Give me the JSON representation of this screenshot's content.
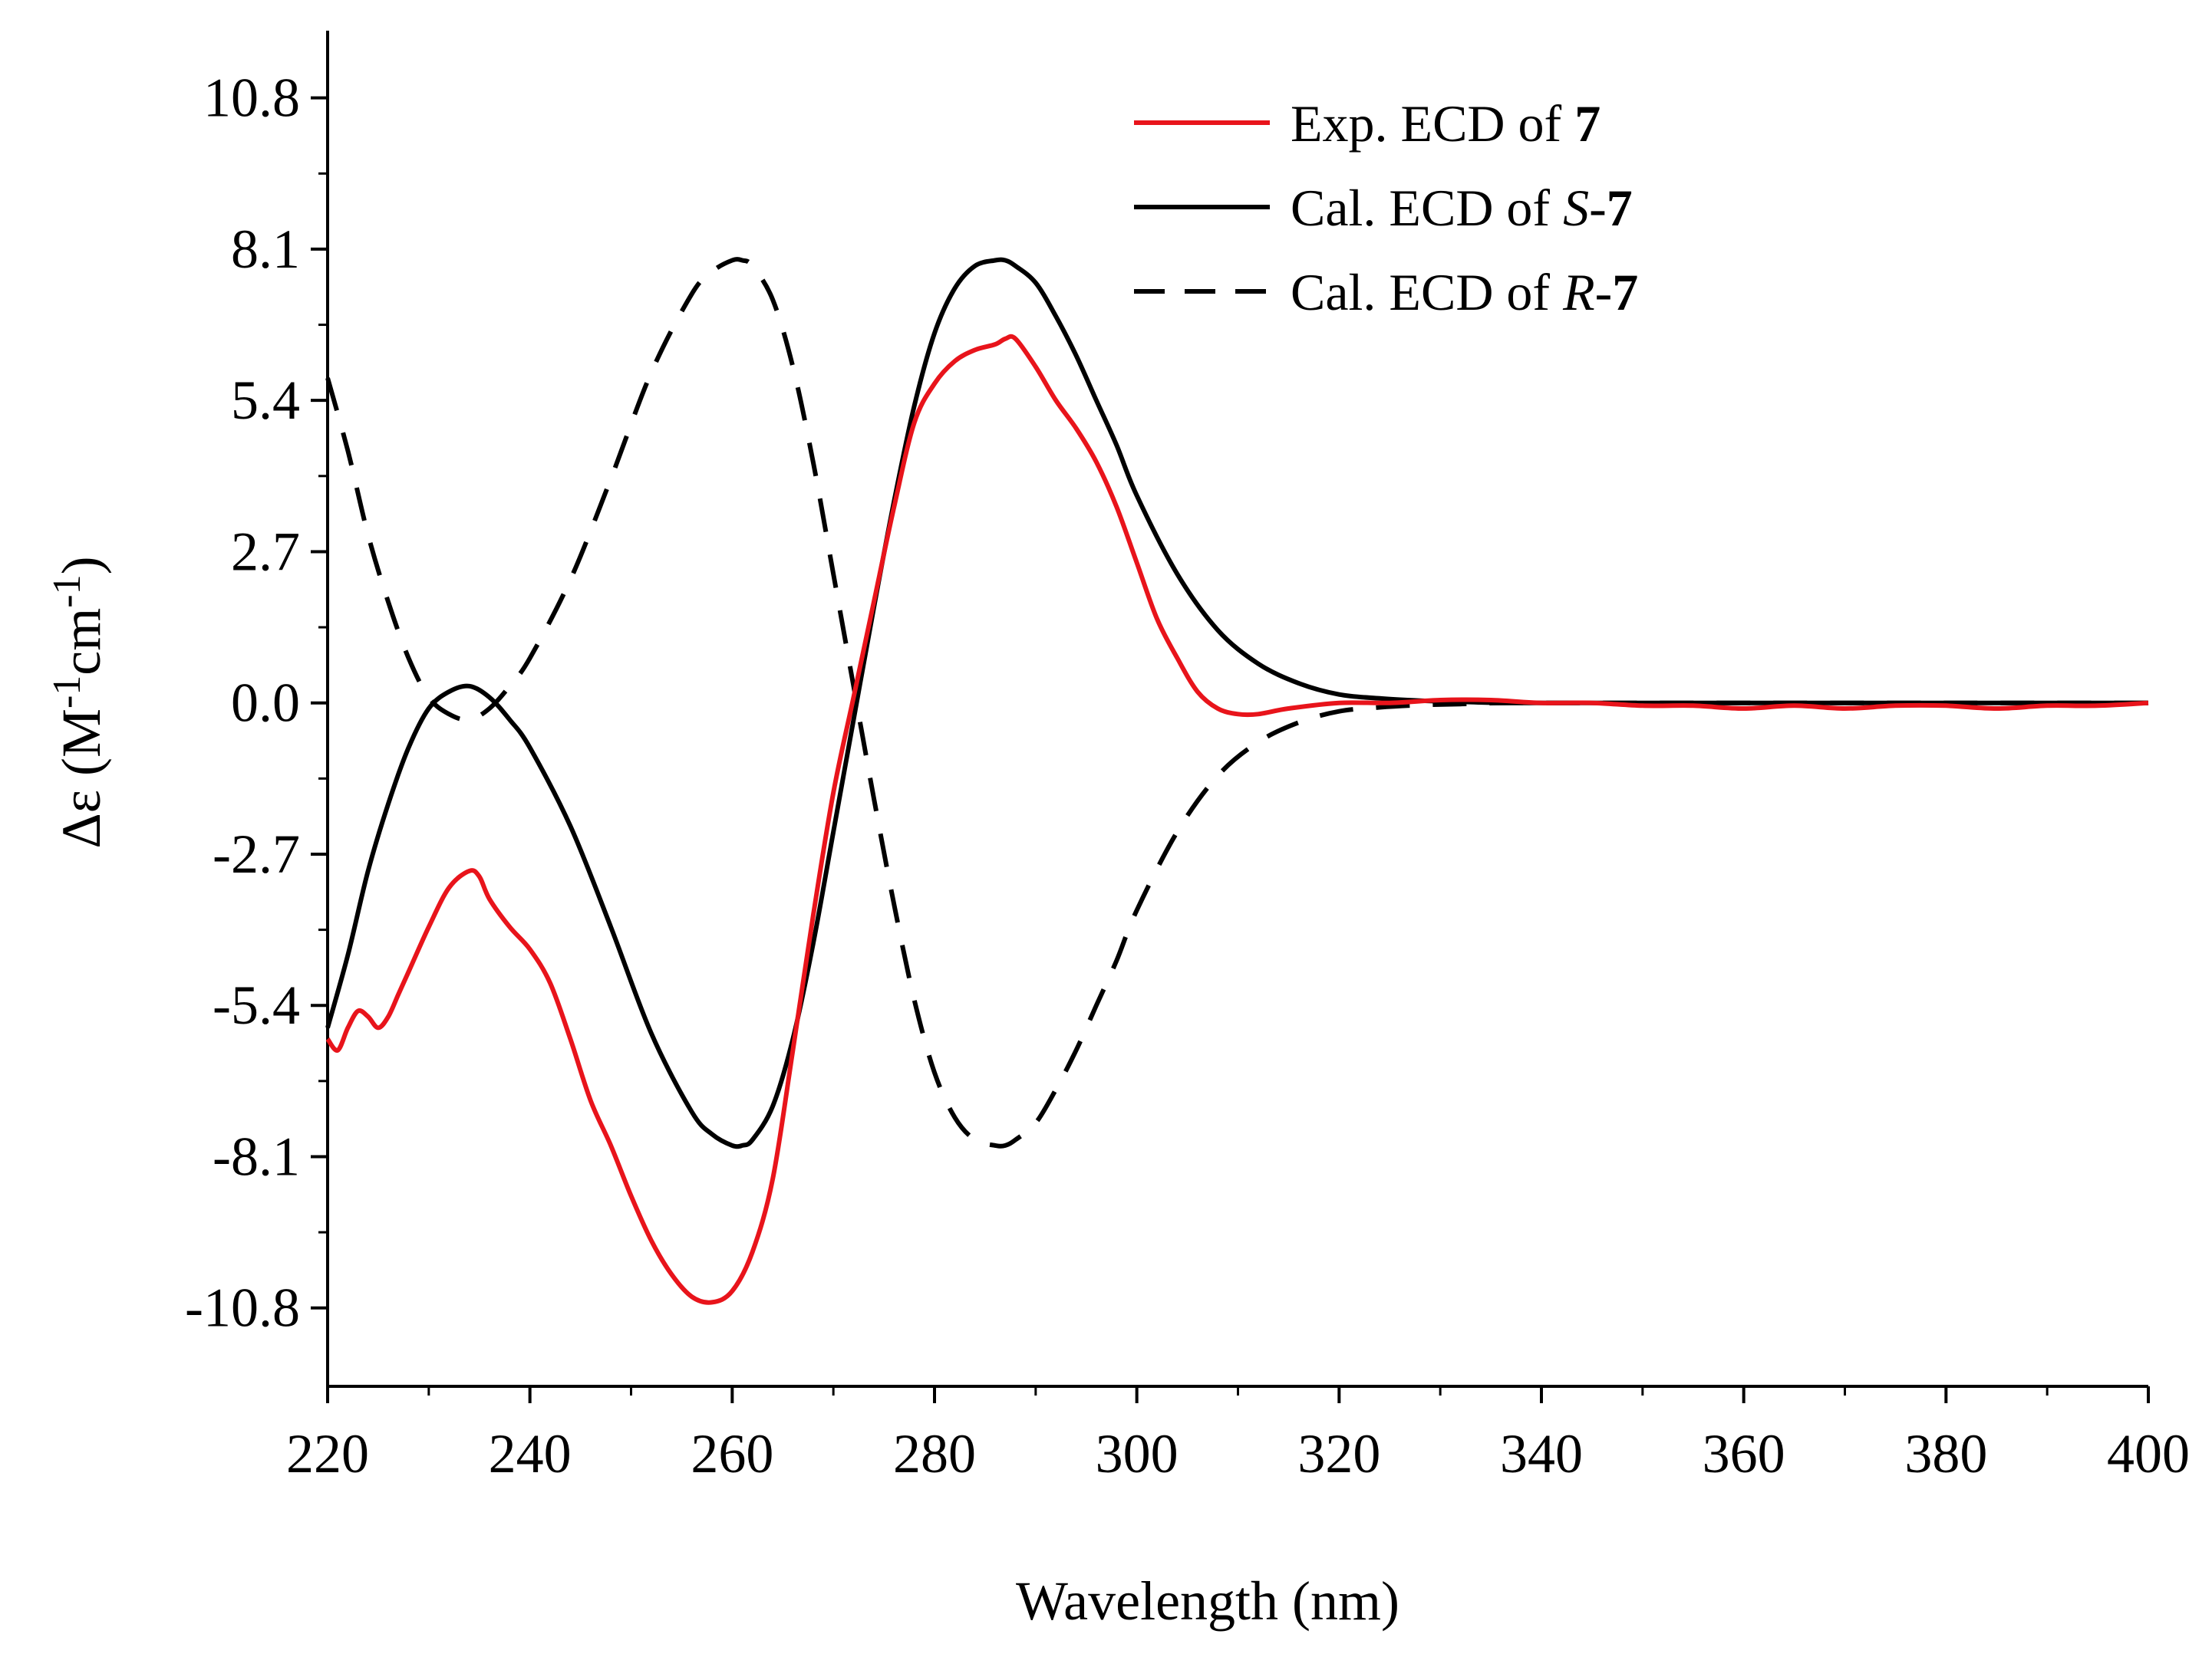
{
  "chart_data": {
    "type": "line",
    "title": "",
    "xlabel": "Wavelength (nm)",
    "ylabel": {
      "prefix": "Δε (M",
      "sup1": "-1",
      "middle": "cm",
      "sup2": "-1",
      "suffix": ")"
    },
    "xlim": [
      220,
      400
    ],
    "ylim": [
      -12.2,
      12.0
    ],
    "xticks": [
      220,
      240,
      260,
      280,
      300,
      320,
      340,
      360,
      380,
      400
    ],
    "xtick_labels": [
      "220",
      "240",
      "260",
      "280",
      "300",
      "320",
      "340",
      "360",
      "380",
      "400"
    ],
    "yticks": [
      10.8,
      8.1,
      5.4,
      2.7,
      0.0,
      -2.7,
      -5.4,
      -8.1,
      -10.8
    ],
    "ytick_labels": [
      "10.8",
      "8.1",
      "5.4",
      "2.7",
      "0.0",
      "-2.7",
      "-5.4",
      "-8.1",
      "-10.8"
    ],
    "grid": false,
    "legend_position": "top-right",
    "series": [
      {
        "name": "Exp. ECD of 7",
        "legend": {
          "pre": "Exp. ECD of ",
          "italic": "",
          "mid": "",
          "bold": "7"
        },
        "color": "#e8141b",
        "dash": "solid",
        "x": [
          220,
          221,
          222,
          223,
          224,
          225,
          226,
          227,
          228,
          230,
          232,
          234,
          235,
          236,
          238,
          240,
          242,
          244,
          246,
          248,
          250,
          252,
          254,
          256,
          258,
          260,
          262,
          264,
          266,
          268,
          270,
          272,
          274,
          276,
          278,
          280,
          282,
          284,
          286,
          287,
          288,
          290,
          292,
          294,
          296,
          298,
          300,
          302,
          304,
          306,
          308,
          310,
          312,
          315,
          320,
          325,
          330,
          335,
          340,
          345,
          350,
          355,
          360,
          365,
          370,
          375,
          380,
          385,
          390,
          395,
          400
        ],
        "y": [
          -6.0,
          -6.2,
          -5.8,
          -5.5,
          -5.6,
          -5.8,
          -5.6,
          -5.2,
          -4.8,
          -4.0,
          -3.3,
          -3.0,
          -3.1,
          -3.5,
          -4.0,
          -4.4,
          -5.0,
          -6.0,
          -7.1,
          -7.9,
          -8.8,
          -9.6,
          -10.2,
          -10.6,
          -10.7,
          -10.5,
          -9.8,
          -8.5,
          -6.2,
          -3.8,
          -1.6,
          0.1,
          1.8,
          3.5,
          5.0,
          5.7,
          6.1,
          6.3,
          6.4,
          6.5,
          6.5,
          6.0,
          5.4,
          4.9,
          4.3,
          3.5,
          2.5,
          1.5,
          0.8,
          0.2,
          -0.1,
          -0.2,
          -0.2,
          -0.1,
          0.0,
          0.0,
          0.05,
          0.05,
          0.0,
          0.0,
          -0.05,
          -0.05,
          -0.1,
          -0.05,
          -0.1,
          -0.05,
          -0.05,
          -0.1,
          -0.05,
          -0.05,
          0.0
        ]
      },
      {
        "name": "Cal. ECD of S-7",
        "legend": {
          "pre": "Cal. ECD of ",
          "italic": "S",
          "mid": "-",
          "bold": "7"
        },
        "color": "#000000",
        "dash": "solid",
        "x": [
          220,
          222,
          224,
          226,
          228,
          230,
          232,
          234,
          236,
          238,
          240,
          244,
          248,
          252,
          256,
          258,
          260,
          261,
          262,
          264,
          266,
          268,
          270,
          272,
          274,
          276,
          278,
          280,
          282,
          284,
          286,
          287,
          288,
          290,
          292,
          294,
          296,
          298,
          300,
          304,
          308,
          312,
          316,
          320,
          324,
          328,
          332,
          336,
          340,
          350,
          360,
          380,
          400
        ],
        "y": [
          -5.8,
          -4.5,
          -3.0,
          -1.8,
          -0.8,
          -0.1,
          0.2,
          0.3,
          0.1,
          -0.3,
          -0.8,
          -2.2,
          -4.0,
          -5.9,
          -7.3,
          -7.7,
          -7.9,
          -7.9,
          -7.8,
          -7.2,
          -6.0,
          -4.3,
          -2.3,
          -0.3,
          1.7,
          3.6,
          5.3,
          6.6,
          7.4,
          7.8,
          7.9,
          7.9,
          7.8,
          7.5,
          6.9,
          6.2,
          5.4,
          4.6,
          3.7,
          2.3,
          1.3,
          0.7,
          0.35,
          0.15,
          0.08,
          0.04,
          0.02,
          0.0,
          0.0,
          0.0,
          0.0,
          0.0,
          0.0
        ]
      },
      {
        "name": "Cal. ECD of R-7",
        "legend": {
          "pre": "Cal. ECD of ",
          "italic": "R",
          "mid": "-",
          "bold": "7"
        },
        "color": "#000000",
        "dash": "dashed",
        "x": [
          220,
          222,
          224,
          226,
          228,
          230,
          232,
          234,
          236,
          238,
          240,
          244,
          248,
          252,
          256,
          258,
          260,
          261,
          262,
          264,
          266,
          268,
          270,
          272,
          274,
          276,
          278,
          280,
          282,
          284,
          286,
          287,
          288,
          290,
          292,
          294,
          296,
          298,
          300,
          304,
          308,
          312,
          316,
          320,
          324,
          328,
          332,
          336,
          340,
          350,
          360,
          380,
          400
        ],
        "y": [
          5.8,
          4.5,
          3.0,
          1.8,
          0.8,
          0.1,
          -0.2,
          -0.3,
          -0.1,
          0.3,
          0.8,
          2.2,
          4.0,
          5.9,
          7.3,
          7.7,
          7.9,
          7.9,
          7.8,
          7.2,
          6.0,
          4.3,
          2.3,
          0.3,
          -1.7,
          -3.6,
          -5.3,
          -6.6,
          -7.4,
          -7.8,
          -7.9,
          -7.9,
          -7.8,
          -7.5,
          -6.9,
          -6.2,
          -5.4,
          -4.6,
          -3.7,
          -2.3,
          -1.3,
          -0.7,
          -0.35,
          -0.15,
          -0.08,
          -0.04,
          -0.02,
          0.0,
          0.0,
          0.0,
          0.0,
          0.0,
          0.0
        ]
      }
    ]
  }
}
